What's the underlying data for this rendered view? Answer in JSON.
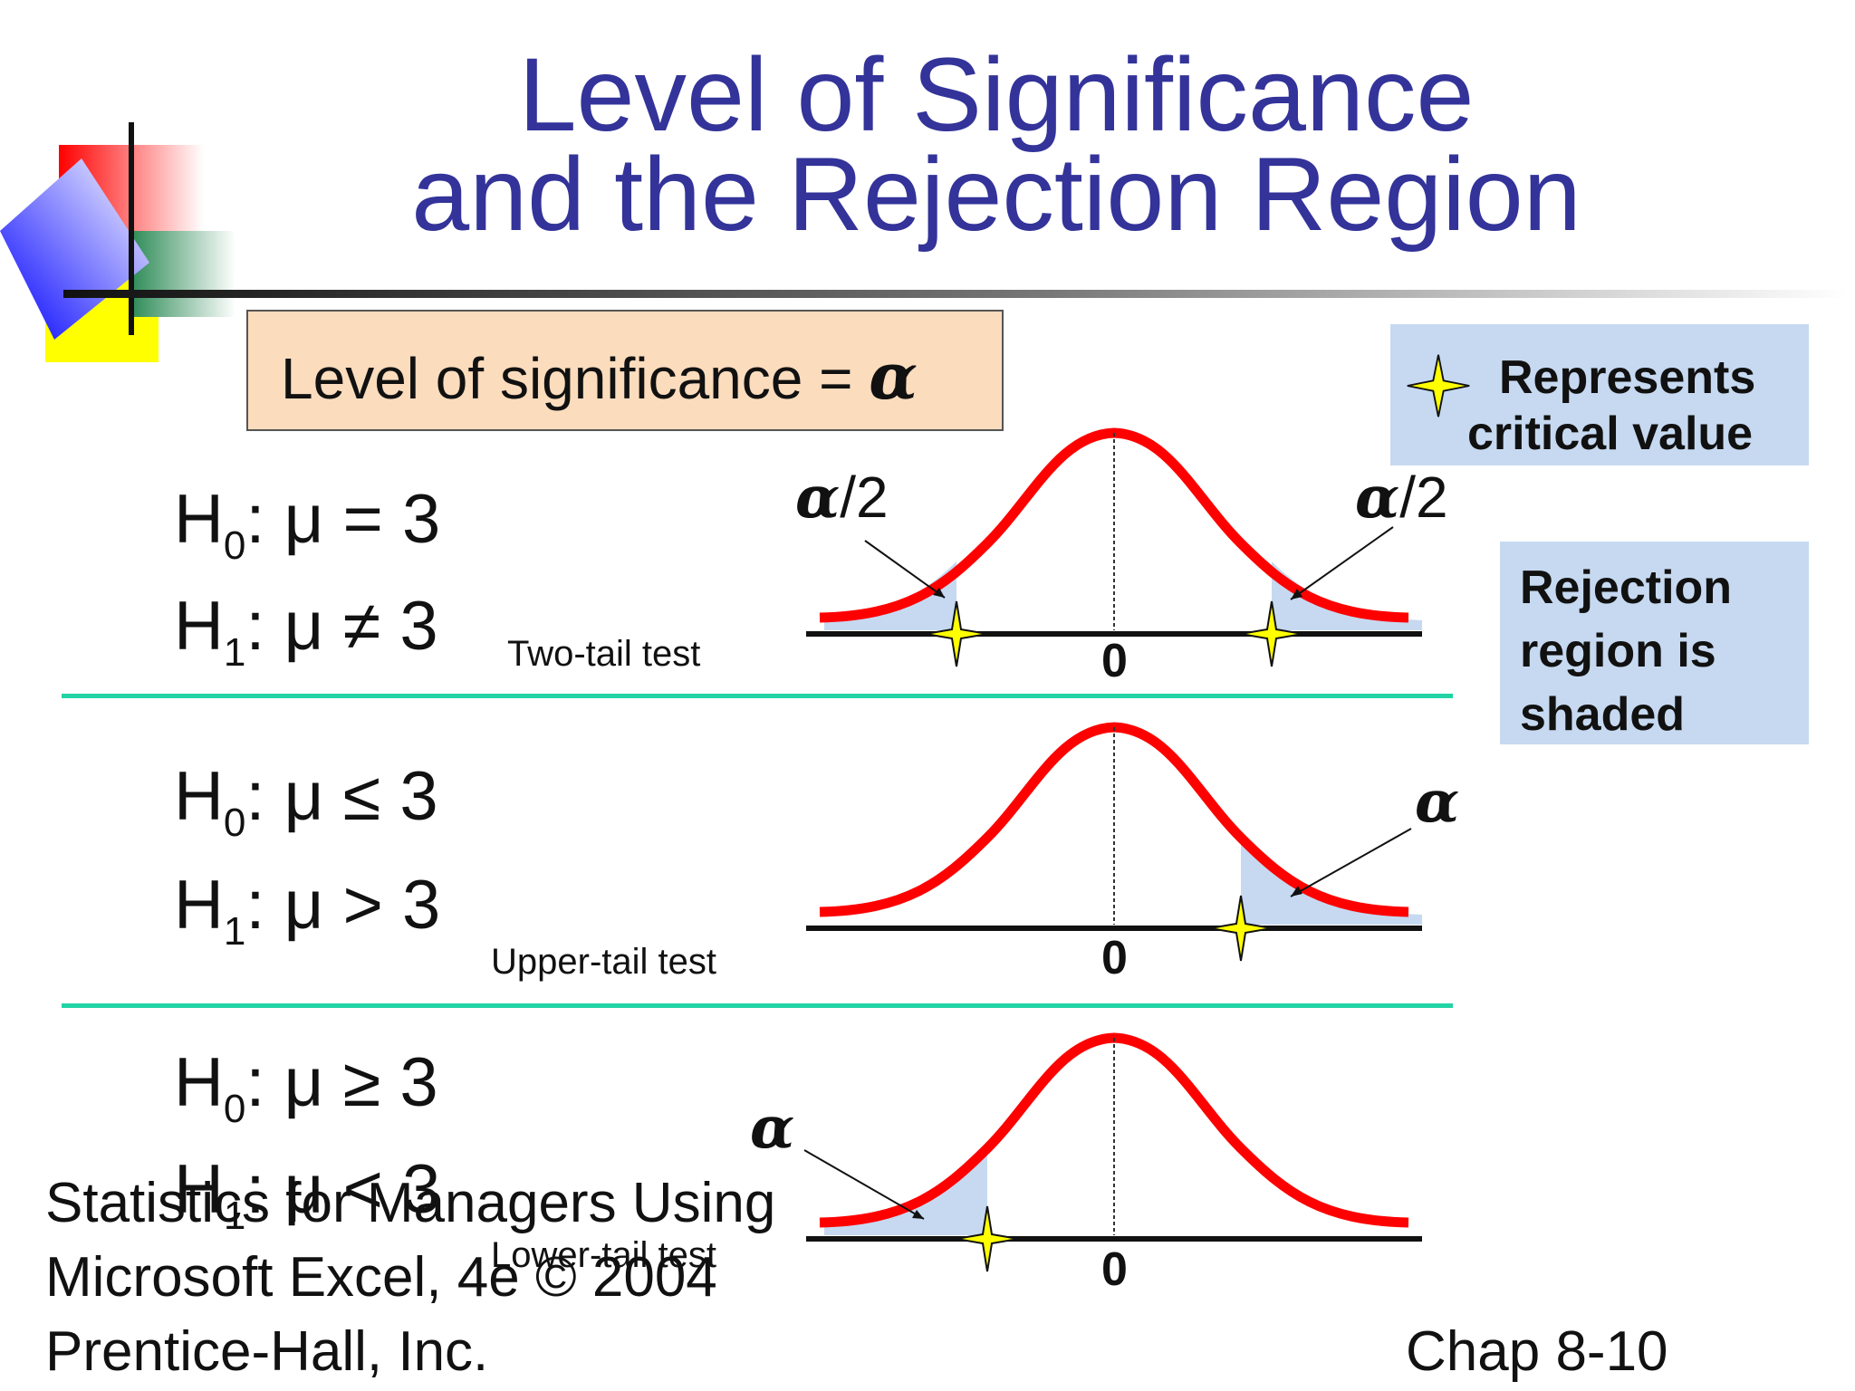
{
  "title": {
    "line1": "Level of Significance",
    "line2": "and the Rejection Region"
  },
  "significance_box": {
    "text": "Level of significance = ",
    "symbol": "α"
  },
  "legend": {
    "critical_line1": "Represents",
    "critical_line2": "critical value",
    "rejection_line1": "Rejection",
    "rejection_line2": "region is",
    "rejection_line3": "shaded"
  },
  "tests": [
    {
      "h0": {
        "H": "H",
        "sub": "0",
        "rest": ": μ = 3"
      },
      "h1": {
        "H": "H",
        "sub": "1",
        "rest": ": μ ≠ 3"
      },
      "label": "Two-tail test",
      "alpha_left": "α",
      "alpha_left_suffix": "/2",
      "alpha_right": "α",
      "alpha_right_suffix": "/2",
      "zero": "0"
    },
    {
      "h0": {
        "H": "H",
        "sub": "0",
        "rest": ": μ ≤ 3"
      },
      "h1": {
        "H": "H",
        "sub": "1",
        "rest": ": μ > 3"
      },
      "label": "Upper-tail test",
      "alpha": "α",
      "zero": "0"
    },
    {
      "h0": {
        "H": "H",
        "sub": "0",
        "rest": ": μ ≥ 3"
      },
      "h1": {
        "H": "H",
        "sub": "1",
        "rest": ": μ < 3"
      },
      "label": "Lower-tail test",
      "alpha": "α",
      "zero": "0"
    }
  ],
  "footer": {
    "line1": "Statistics for Managers Using",
    "line2": "Microsoft Excel, 4e © 2004",
    "line3": "Prentice-Hall, Inc.",
    "chapter": "Chap 8-10"
  },
  "colors": {
    "title": "#33339a",
    "curve": "#ff0000",
    "shade": "#c6d9f1",
    "divider": "#22d3a5",
    "star": "#ffff00"
  }
}
